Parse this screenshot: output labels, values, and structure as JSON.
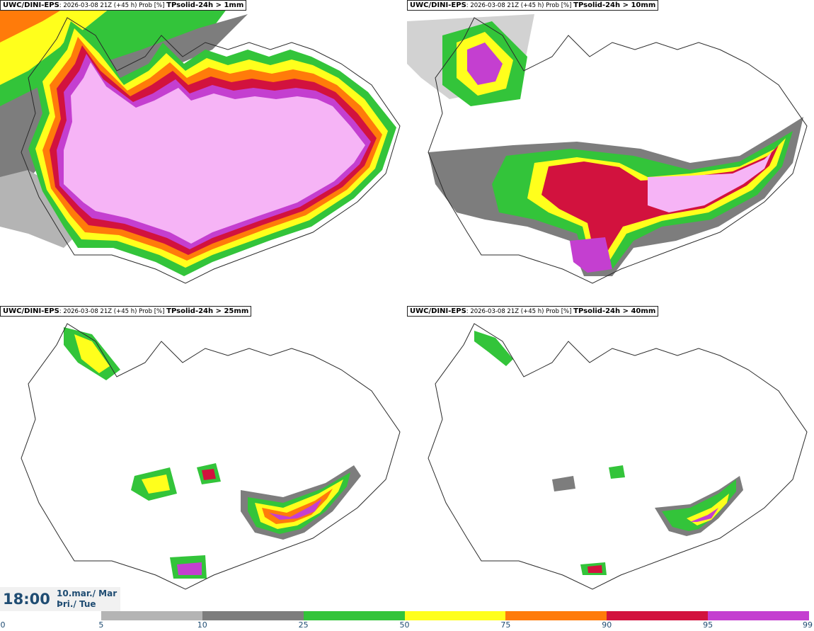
{
  "panels": [
    {
      "model": "UWC/DINI-EPS",
      "run": ": 2026-03-08 21Z (+45 h) Prob [%] ",
      "field": "TPsolid-24h > 1mm"
    },
    {
      "model": "UWC/DINI-EPS",
      "run": ": 2026-03-08 21Z (+45 h) Prob [%] ",
      "field": "TPsolid-24h > 10mm"
    },
    {
      "model": "UWC/DINI-EPS",
      "run": ": 2026-03-08 21Z (+45 h) Prob [%] ",
      "field": "TPsolid-24h > 25mm"
    },
    {
      "model": "UWC/DINI-EPS",
      "run": ": 2026-03-08 21Z (+45 h) Prob [%] ",
      "field": "TPsolid-24h > 40mm"
    }
  ],
  "valid_time": {
    "time": "18:00",
    "date_line1": "10.mar./ Mar",
    "date_line2": "Þri./ Tue"
  },
  "legend": {
    "ticks": [
      "0",
      "5",
      "10",
      "25",
      "50",
      "75",
      "90",
      "95",
      "99"
    ],
    "colors": [
      "#ffffff",
      "#b4b4b4",
      "#7d7d7d",
      "#33c43a",
      "#ffff1c",
      "#ff7b0a",
      "#d2123e",
      "#c43fd0",
      "#f6b4f6"
    ]
  },
  "colors": {
    "coast": "#2a2a2a",
    "p5": "#b4b4b4",
    "p10": "#7d7d7d",
    "p25": "#33c43a",
    "p50": "#ffff1c",
    "p75": "#ff7b0a",
    "p90": "#d2123e",
    "p95": "#c43fd0",
    "p99": "#f6b4f6",
    "text_blue": "#1f4c72"
  }
}
